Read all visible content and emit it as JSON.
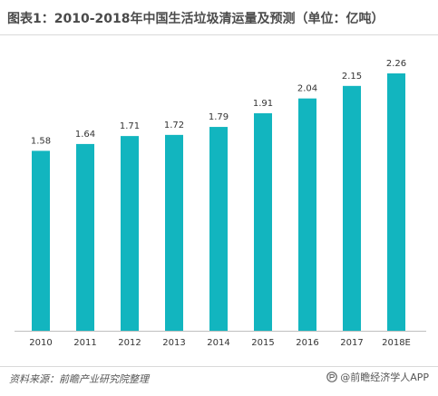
{
  "title": "图表1：2010-2018年中国生活垃圾清运量及预测（单位：亿吨）",
  "source": "资料来源：前瞻产业研究院整理",
  "brand": "@前瞻经济学人APP",
  "brand_icon": "qianzhan-logo-icon",
  "colors": {
    "bar": "#12b5bf",
    "axis": "#bfbfbf",
    "text": "#333333"
  },
  "chart_data": {
    "type": "bar",
    "title": "图表1：2010-2018年中国生活垃圾清运量及预测（单位：亿吨）",
    "xlabel": "",
    "ylabel": "",
    "categories": [
      "2010",
      "2011",
      "2012",
      "2013",
      "2014",
      "2015",
      "2016",
      "2017",
      "2018E"
    ],
    "values": [
      1.58,
      1.64,
      1.71,
      1.72,
      1.79,
      1.91,
      2.04,
      2.15,
      2.26
    ],
    "value_labels": [
      "1.58",
      "1.64",
      "1.71",
      "1.72",
      "1.79",
      "1.91",
      "2.04",
      "2.15",
      "2.26"
    ],
    "data_labels": true,
    "grid": false,
    "legend": "none"
  }
}
